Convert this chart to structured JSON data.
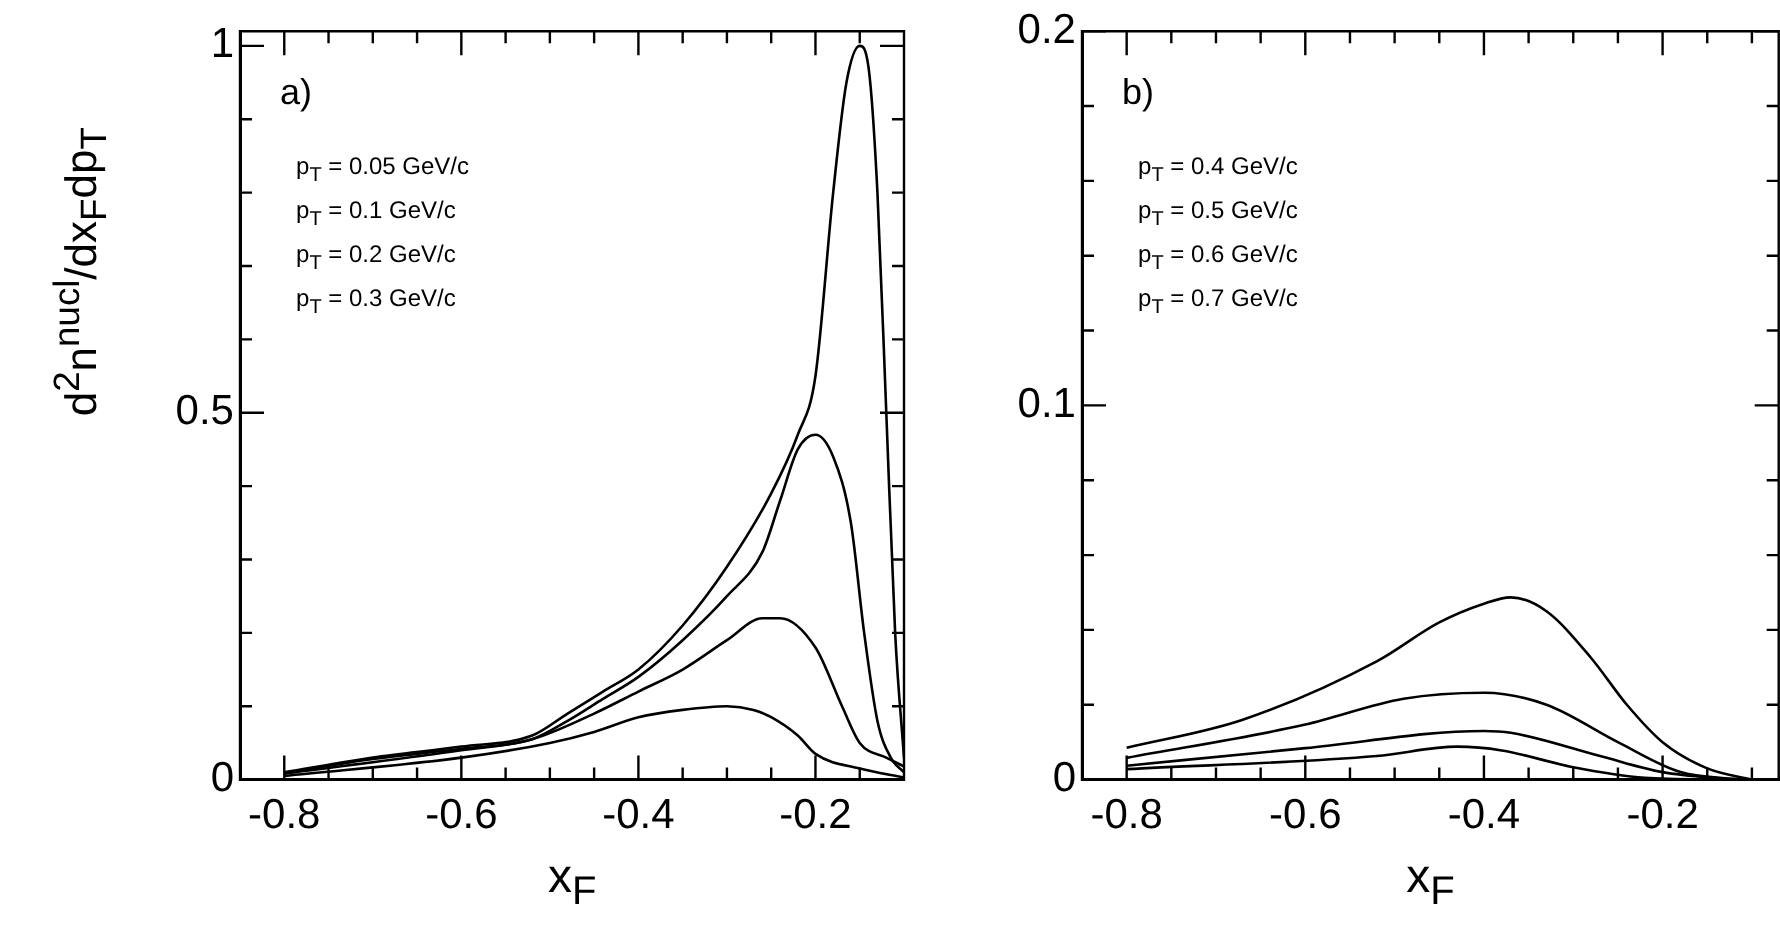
{
  "chart_data": [
    {
      "type": "line",
      "xlabel": "x$_{F}$",
      "ylabel": "d$^{2}$n$^{nucl}$/dx$_{F}$dp$_{T}$",
      "annotations": [
        "a)",
        "p$_{T}$ = 0.05 GeV/c",
        "p$_{T}$ = 0.1 GeV/c",
        "p$_{T}$ = 0.2 GeV/c",
        "p$_{T}$ = 0.3 GeV/c"
      ],
      "xlim": [
        -0.85,
        -0.1
      ],
      "xticks": [
        -0.8,
        {
          "value": -0.75,
          "label": null
        },
        {
          "value": -0.7,
          "label": null
        },
        {
          "value": -0.65,
          "label": null
        },
        -0.6,
        {
          "value": -0.55,
          "label": null
        },
        {
          "value": -0.5,
          "label": null
        },
        {
          "value": -0.45,
          "label": null
        },
        -0.4,
        {
          "value": -0.35,
          "label": null
        },
        {
          "value": -0.3,
          "label": null
        },
        {
          "value": -0.25,
          "label": null
        },
        -0.2,
        {
          "value": -0.15,
          "label": null
        }
      ],
      "ylim": [
        0,
        1.02
      ],
      "yticks": [
        0,
        {
          "value": 0.1,
          "label": null
        },
        {
          "value": 0.2,
          "label": null
        },
        {
          "value": 0.3,
          "label": null
        },
        {
          "value": 0.4,
          "label": null
        },
        0.5,
        {
          "value": 0.6,
          "label": null
        },
        {
          "value": 0.7,
          "label": null
        },
        {
          "value": 0.8,
          "label": null
        },
        {
          "value": 0.9,
          "label": null
        },
        1
      ],
      "grid": false,
      "legend": false,
      "marker": "none",
      "line_style": "solid",
      "series": [
        {
          "color": "#000000",
          "x": [
            -0.8,
            -0.7,
            -0.6,
            -0.52,
            -0.48,
            -0.44,
            -0.4,
            -0.35,
            -0.3,
            -0.25,
            -0.22,
            -0.2,
            -0.18,
            -0.165,
            -0.15,
            -0.14,
            -0.13,
            -0.12,
            -0.11,
            -0.1
          ],
          "values": [
            0.01,
            0.03,
            0.045,
            0.06,
            0.09,
            0.12,
            0.15,
            0.21,
            0.29,
            0.39,
            0.47,
            0.55,
            0.8,
            0.95,
            1.0,
            0.97,
            0.8,
            0.5,
            0.2,
            0.03
          ]
        },
        {
          "color": "#000000",
          "x": [
            -0.8,
            -0.7,
            -0.6,
            -0.52,
            -0.48,
            -0.44,
            -0.4,
            -0.35,
            -0.3,
            -0.26,
            -0.24,
            -0.22,
            -0.2,
            -0.18,
            -0.16,
            -0.145,
            -0.13,
            -0.115,
            -0.1
          ],
          "values": [
            0.009,
            0.028,
            0.042,
            0.055,
            0.08,
            0.11,
            0.14,
            0.19,
            0.25,
            0.31,
            0.38,
            0.45,
            0.47,
            0.44,
            0.35,
            0.2,
            0.08,
            0.03,
            0.01
          ]
        },
        {
          "color": "#000000",
          "x": [
            -0.8,
            -0.6,
            -0.52,
            -0.45,
            -0.4,
            -0.35,
            -0.3,
            -0.26,
            -0.24,
            -0.2,
            -0.17,
            -0.15,
            -0.12,
            -0.1
          ],
          "values": [
            0.008,
            0.04,
            0.055,
            0.09,
            0.12,
            0.15,
            0.19,
            0.22,
            0.22,
            0.18,
            0.1,
            0.05,
            0.03,
            0.018
          ]
        },
        {
          "color": "#000000",
          "x": [
            -0.8,
            -0.6,
            -0.5,
            -0.45,
            -0.4,
            -0.35,
            -0.3,
            -0.27,
            -0.25,
            -0.22,
            -0.2,
            -0.15,
            -0.1
          ],
          "values": [
            0.005,
            0.03,
            0.05,
            0.065,
            0.085,
            0.095,
            0.1,
            0.095,
            0.085,
            0.06,
            0.035,
            0.015,
            0.003
          ]
        }
      ]
    },
    {
      "type": "line",
      "xlabel": "x$_{F}$",
      "annotations": [
        "b)",
        "p$_{T}$ = 0.4 GeV/c",
        "p$_{T}$ = 0.5 GeV/c",
        "p$_{T}$ = 0.6 GeV/c",
        "p$_{T}$ = 0.7 GeV/c"
      ],
      "xlim": [
        -0.85,
        -0.07
      ],
      "xticks": [
        -0.8,
        {
          "value": -0.75,
          "label": null
        },
        {
          "value": -0.7,
          "label": null
        },
        {
          "value": -0.65,
          "label": null
        },
        -0.6,
        {
          "value": -0.55,
          "label": null
        },
        {
          "value": -0.5,
          "label": null
        },
        {
          "value": -0.45,
          "label": null
        },
        -0.4,
        {
          "value": -0.35,
          "label": null
        },
        {
          "value": -0.3,
          "label": null
        },
        {
          "value": -0.25,
          "label": null
        },
        -0.2,
        {
          "value": -0.15,
          "label": null
        },
        {
          "value": -0.1,
          "label": null
        }
      ],
      "ylim": [
        0,
        0.2
      ],
      "yticks": [
        0,
        {
          "value": 0.02,
          "label": null
        },
        {
          "value": 0.04,
          "label": null
        },
        {
          "value": 0.06,
          "label": null
        },
        {
          "value": 0.08,
          "label": null
        },
        0.1,
        {
          "value": 0.12,
          "label": null
        },
        {
          "value": 0.14,
          "label": null
        },
        {
          "value": 0.16,
          "label": null
        },
        {
          "value": 0.18,
          "label": null
        },
        0.2
      ],
      "grid": false,
      "legend": false,
      "marker": "none",
      "line_style": "solid",
      "series": [
        {
          "color": "#000000",
          "x": [
            -0.8,
            -0.67,
            -0.52,
            -0.45,
            -0.4,
            -0.37,
            -0.33,
            -0.28,
            -0.24,
            -0.2,
            -0.15,
            -0.1
          ],
          "values": [
            0.0085,
            0.016,
            0.0316,
            0.042,
            0.047,
            0.0487,
            0.045,
            0.0325,
            0.02,
            0.01,
            0.003,
            0
          ]
        },
        {
          "color": "#000000",
          "x": [
            -0.8,
            -0.6,
            -0.49,
            -0.4,
            -0.33,
            -0.25,
            -0.18,
            -0.11
          ],
          "values": [
            0.0058,
            0.0147,
            0.0216,
            0.0232,
            0.02,
            0.01,
            0.002,
            0
          ]
        },
        {
          "color": "#000000",
          "x": [
            -0.8,
            -0.6,
            -0.4,
            -0.37,
            -0.27,
            -0.2,
            -0.12
          ],
          "values": [
            0.0037,
            0.0084,
            0.013,
            0.0125,
            0.0063,
            0.002,
            0
          ]
        },
        {
          "color": "#000000",
          "x": [
            -0.8,
            -0.52,
            -0.43,
            -0.38,
            -0.3,
            -0.22,
            -0.13
          ],
          "values": [
            0.0028,
            0.0063,
            0.0088,
            0.0078,
            0.0033,
            0.0005,
            0
          ]
        }
      ]
    }
  ]
}
